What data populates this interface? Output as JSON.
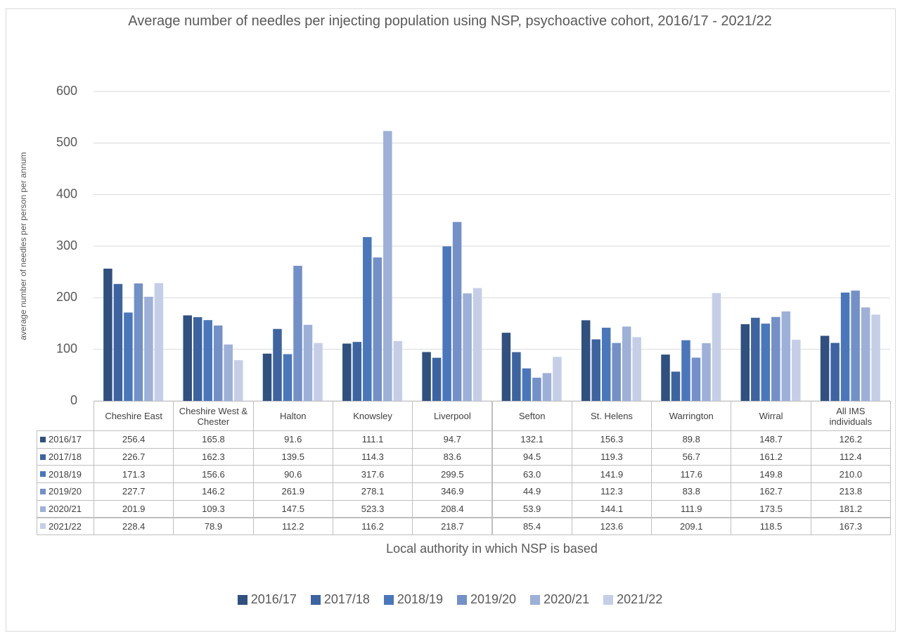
{
  "chart_data": {
    "type": "bar",
    "title": "Average number of needles per injecting population using NSP, psychoactive cohort, 2016/17 - 2021/22",
    "y_label": "average number of needles per person per annum",
    "x_label": "Local authority in which NSP is based",
    "categories": [
      "Cheshire East",
      "Cheshire West & Chester",
      "Halton",
      "Knowsley",
      "Liverpool",
      "Sefton",
      "St. Helens",
      "Warrington",
      "Wirral",
      "All IMS individuals"
    ],
    "ylim": [
      0,
      600
    ],
    "yticks": [
      0,
      100,
      200,
      300,
      400,
      500,
      600
    ],
    "grid": true,
    "legend": "bottom",
    "series": [
      {
        "name": "2016/17",
        "color": "#30507f",
        "values": [
          256.4,
          165.8,
          91.6,
          111.1,
          94.7,
          132.1,
          156.3,
          89.8,
          148.7,
          126.2
        ],
        "value_labels": [
          "256.4",
          "165.8",
          "91.6",
          "111.1",
          "94.7",
          "132.1",
          "156.3",
          "89.8",
          "148.7",
          "126.2"
        ]
      },
      {
        "name": "2017/18",
        "color": "#3d64a0",
        "values": [
          226.7,
          162.3,
          139.5,
          114.3,
          83.6,
          94.5,
          119.3,
          56.7,
          161.2,
          112.4
        ],
        "value_labels": [
          "226.7",
          "162.3",
          "139.5",
          "114.3",
          "83.6",
          "94.5",
          "119.3",
          "56.7",
          "161.2",
          "112.4"
        ]
      },
      {
        "name": "2018/19",
        "color": "#4a77bc",
        "values": [
          171.3,
          156.6,
          90.6,
          317.6,
          299.5,
          63,
          141.9,
          117.6,
          149.8,
          210
        ],
        "value_labels": [
          "171.3",
          "156.6",
          "90.6",
          "317.6",
          "299.5",
          "63.0",
          "141.9",
          "117.6",
          "149.8",
          "210.0"
        ]
      },
      {
        "name": "2019/20",
        "color": "#7390c8",
        "values": [
          227.7,
          146.2,
          261.9,
          278.1,
          346.9,
          44.9,
          112.3,
          83.8,
          162.7,
          213.8
        ],
        "value_labels": [
          "227.7",
          "146.2",
          "261.9",
          "278.1",
          "346.9",
          "44.9",
          "112.3",
          "83.8",
          "162.7",
          "213.8"
        ]
      },
      {
        "name": "2020/21",
        "color": "#9db0d8",
        "values": [
          201.9,
          109.3,
          147.5,
          523.3,
          208.4,
          53.9,
          144.1,
          111.9,
          173.5,
          181.2
        ],
        "value_labels": [
          "201.9",
          "109.3",
          "147.5",
          "523.3",
          "208.4",
          "53.9",
          "144.1",
          "111.9",
          "173.5",
          "181.2"
        ]
      },
      {
        "name": "2021/22",
        "color": "#c4cfe7",
        "values": [
          228.4,
          78.9,
          112.2,
          116.2,
          218.7,
          85.4,
          123.6,
          209.1,
          118.5,
          167.3
        ],
        "value_labels": [
          "228.4",
          "78.9",
          "112.2",
          "116.2",
          "218.7",
          "85.4",
          "123.6",
          "209.1",
          "118.5",
          "167.3"
        ]
      }
    ]
  }
}
